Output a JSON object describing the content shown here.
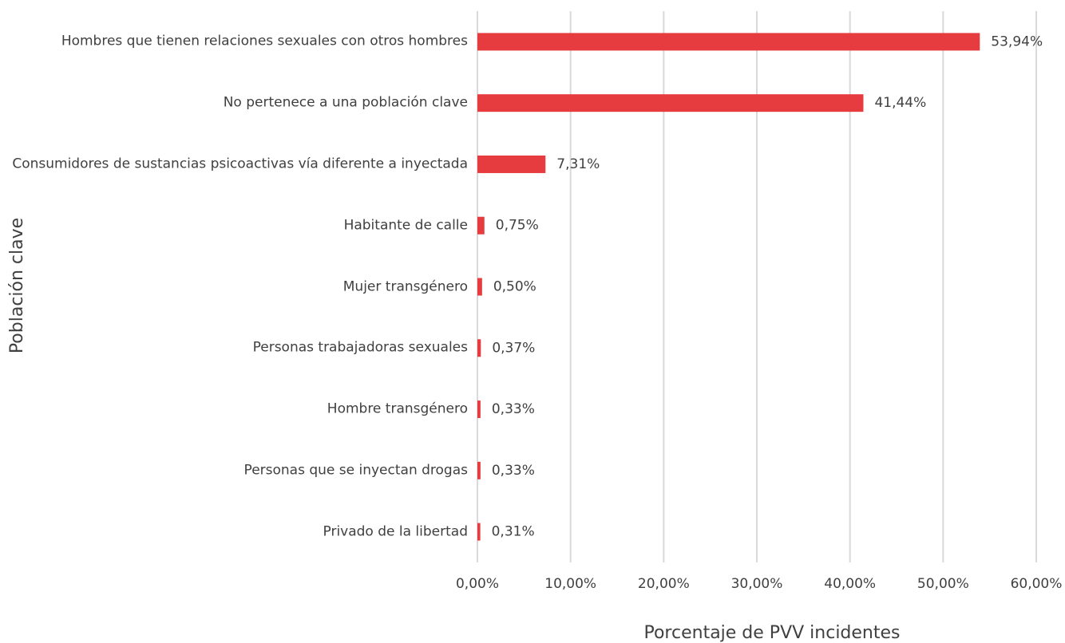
{
  "chart_data": {
    "type": "bar",
    "orientation": "horizontal",
    "xlabel": "Porcentaje de PVV incidentes",
    "ylabel": "Población clave",
    "categories": [
      "Hombres que tienen relaciones sexuales con otros hombres",
      "No pertenece a una población clave",
      "Consumidores de sustancias psicoactivas vía diferente a inyectada",
      "Habitante de calle",
      "Mujer transgénero",
      "Personas trabajadoras sexuales",
      "Hombre transgénero",
      "Personas que se inyectan drogas",
      "Privado de la libertad"
    ],
    "values": [
      53.94,
      41.44,
      7.31,
      0.75,
      0.5,
      0.37,
      0.33,
      0.33,
      0.31
    ],
    "value_labels": [
      "53,94%",
      "41,44%",
      "7,31%",
      "0,75%",
      "0,50%",
      "0,37%",
      "0,33%",
      "0,33%",
      "0,31%"
    ],
    "color": "#e63b3f",
    "xlim": [
      0,
      60
    ],
    "xticks": [
      {
        "value": 0,
        "label": "0,00%"
      },
      {
        "value": 10,
        "label": "10,00%"
      },
      {
        "value": 20,
        "label": "20,00%"
      },
      {
        "value": 30,
        "label": "30,00%"
      },
      {
        "value": 40,
        "label": "40,00%"
      },
      {
        "value": 50,
        "label": "50,00%"
      },
      {
        "value": 60,
        "label": "60,00%"
      }
    ],
    "grid": true
  }
}
